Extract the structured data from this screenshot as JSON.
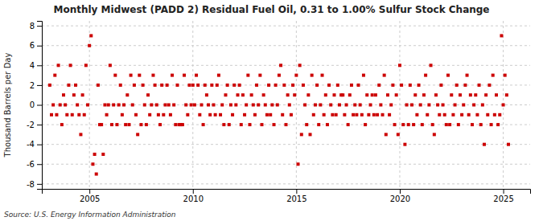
{
  "chart_data": {
    "type": "scatter",
    "title": "Monthly Midwest (PADD 2) Residual Fuel Oil, 0.31 to 1.00% Sulfur Stock Change",
    "ylabel": "Thousand Barrels per Day",
    "source": "Source: U.S. Energy Information Administration",
    "color": "#cc0000",
    "marker": "square",
    "grid": true,
    "xlim": [
      2002.7,
      2026.3
    ],
    "ylim": [
      -8.5,
      8.5
    ],
    "xticks": [
      2005,
      2010,
      2015,
      2020,
      2025
    ],
    "yticks": [
      -8,
      -6,
      -4,
      -2,
      0,
      2,
      4,
      6,
      8
    ],
    "x": [
      2003.083,
      2003.167,
      2003.25,
      2003.333,
      2003.417,
      2003.5,
      2003.583,
      2003.667,
      2003.75,
      2003.833,
      2003.917,
      2004.0,
      2004.083,
      2004.167,
      2004.25,
      2004.333,
      2004.417,
      2004.5,
      2004.583,
      2004.667,
      2004.75,
      2004.833,
      2004.917,
      2005.0,
      2005.083,
      2005.167,
      2005.25,
      2005.333,
      2005.417,
      2005.5,
      2005.583,
      2005.667,
      2005.75,
      2005.833,
      2005.917,
      2006.0,
      2006.083,
      2006.167,
      2006.25,
      2006.333,
      2006.417,
      2006.5,
      2006.583,
      2006.667,
      2006.75,
      2006.833,
      2006.917,
      2007.0,
      2007.083,
      2007.167,
      2007.25,
      2007.333,
      2007.417,
      2007.5,
      2007.583,
      2007.667,
      2007.75,
      2007.833,
      2007.917,
      2008.0,
      2008.083,
      2008.167,
      2008.25,
      2008.333,
      2008.417,
      2008.5,
      2008.583,
      2008.667,
      2008.75,
      2008.833,
      2008.917,
      2009.0,
      2009.083,
      2009.167,
      2009.25,
      2009.333,
      2009.417,
      2009.5,
      2009.583,
      2009.667,
      2009.75,
      2009.833,
      2009.917,
      2010.0,
      2010.083,
      2010.167,
      2010.25,
      2010.333,
      2010.417,
      2010.5,
      2010.583,
      2010.667,
      2010.75,
      2010.833,
      2010.917,
      2011.0,
      2011.083,
      2011.167,
      2011.25,
      2011.333,
      2011.417,
      2011.5,
      2011.583,
      2011.667,
      2011.75,
      2011.833,
      2011.917,
      2012.0,
      2012.083,
      2012.167,
      2012.25,
      2012.333,
      2012.417,
      2012.5,
      2012.583,
      2012.667,
      2012.75,
      2012.833,
      2012.917,
      2013.0,
      2013.083,
      2013.167,
      2013.25,
      2013.333,
      2013.417,
      2013.5,
      2013.583,
      2013.667,
      2013.75,
      2013.833,
      2013.917,
      2014.0,
      2014.083,
      2014.167,
      2014.25,
      2014.333,
      2014.417,
      2014.5,
      2014.583,
      2014.667,
      2014.75,
      2014.833,
      2014.917,
      2015.0,
      2015.083,
      2015.167,
      2015.25,
      2015.333,
      2015.417,
      2015.5,
      2015.583,
      2015.667,
      2015.75,
      2015.833,
      2015.917,
      2016.0,
      2016.083,
      2016.167,
      2016.25,
      2016.333,
      2016.417,
      2016.5,
      2016.583,
      2016.667,
      2016.75,
      2016.833,
      2016.917,
      2017.0,
      2017.083,
      2017.167,
      2017.25,
      2017.333,
      2017.417,
      2017.5,
      2017.583,
      2017.667,
      2017.75,
      2017.833,
      2017.917,
      2018.0,
      2018.083,
      2018.167,
      2018.25,
      2018.333,
      2018.417,
      2018.5,
      2018.583,
      2018.667,
      2018.75,
      2018.833,
      2018.917,
      2019.0,
      2019.083,
      2019.167,
      2019.25,
      2019.333,
      2019.417,
      2019.5,
      2019.583,
      2019.667,
      2019.75,
      2019.833,
      2019.917,
      2020.0,
      2020.083,
      2020.167,
      2020.25,
      2020.333,
      2020.417,
      2020.5,
      2020.583,
      2020.667,
      2020.75,
      2020.833,
      2020.917,
      2021.0,
      2021.083,
      2021.167,
      2021.25,
      2021.333,
      2021.417,
      2021.5,
      2021.583,
      2021.667,
      2021.75,
      2021.833,
      2021.917,
      2022.0,
      2022.083,
      2022.167,
      2022.25,
      2022.333,
      2022.417,
      2022.5,
      2022.583,
      2022.667,
      2022.75,
      2022.833,
      2022.917,
      2023.0,
      2023.083,
      2023.167,
      2023.25,
      2023.333,
      2023.417,
      2023.5,
      2023.583,
      2023.667,
      2023.75,
      2023.833,
      2023.917,
      2024.0,
      2024.083,
      2024.167,
      2024.25,
      2024.333,
      2024.417,
      2024.5,
      2024.583,
      2024.667,
      2024.75,
      2024.833,
      2024.917,
      2025.0,
      2025.083,
      2025.167,
      2025.25
    ],
    "values": [
      2.0,
      -1.0,
      0.0,
      3.0,
      -1.0,
      4.0,
      0.0,
      -2.0,
      1.0,
      0.0,
      -1.0,
      2.0,
      4.0,
      -1.0,
      1.0,
      2.0,
      0.0,
      -1.0,
      -3.0,
      1.0,
      -1.0,
      4.0,
      0.0,
      6.0,
      7.0,
      -6.0,
      -5.0,
      -7.0,
      2.0,
      -2.0,
      -2.0,
      -5.0,
      0.0,
      -1.0,
      0.0,
      4.0,
      -2.0,
      0.0,
      3.0,
      -2.0,
      0.0,
      2.0,
      -1.0,
      0.0,
      -2.0,
      1.0,
      -2.0,
      3.0,
      0.0,
      2.0,
      -1.0,
      -3.0,
      3.0,
      -2.0,
      2.0,
      0.0,
      -2.0,
      1.0,
      -1.0,
      0.0,
      3.0,
      2.0,
      0.0,
      -1.0,
      -2.0,
      2.0,
      -1.0,
      0.0,
      2.0,
      0.0,
      -1.0,
      3.0,
      0.0,
      -2.0,
      2.0,
      -2.0,
      -2.0,
      -2.0,
      3.0,
      0.0,
      -1.0,
      2.0,
      0.0,
      2.0,
      0.0,
      3.0,
      2.0,
      -1.0,
      0.0,
      -2.0,
      2.0,
      1.0,
      0.0,
      -1.0,
      2.0,
      0.0,
      -1.0,
      2.0,
      3.0,
      -1.0,
      0.0,
      -2.0,
      1.0,
      2.0,
      -2.0,
      0.0,
      -1.0,
      2.0,
      0.0,
      1.0,
      2.0,
      -2.0,
      1.0,
      -1.0,
      0.0,
      3.0,
      -2.0,
      1.0,
      0.0,
      -1.0,
      2.0,
      0.0,
      3.0,
      -2.0,
      1.0,
      0.0,
      -1.0,
      2.0,
      -1.0,
      0.0,
      -2.0,
      2.0,
      0.0,
      3.0,
      4.0,
      -1.0,
      2.0,
      -2.0,
      1.0,
      0.0,
      -1.0,
      2.0,
      1.0,
      3.0,
      -6.0,
      4.0,
      -3.0,
      2.0,
      0.0,
      -2.0,
      1.0,
      -3.0,
      3.0,
      -1.0,
      0.0,
      2.0,
      -2.0,
      0.0,
      3.0,
      -1.0,
      1.0,
      -2.0,
      2.0,
      0.0,
      -1.0,
      1.0,
      -1.0,
      2.0,
      0.0,
      1.0,
      1.0,
      -1.0,
      0.0,
      -2.0,
      1.0,
      2.0,
      -1.0,
      0.0,
      -1.0,
      2.0,
      0.0,
      -1.0,
      3.0,
      -2.0,
      1.0,
      -1.0,
      0.0,
      1.0,
      -1.0,
      1.0,
      -1.0,
      2.0,
      0.0,
      -1.0,
      3.0,
      -3.0,
      1.0,
      -1.0,
      0.0,
      2.0,
      -2.0,
      1.0,
      -3.0,
      4.0,
      2.0,
      -2.0,
      -4.0,
      0.0,
      -2.0,
      2.0,
      0.0,
      -2.0,
      1.0,
      -1.0,
      2.0,
      0.0,
      -2.0,
      1.0,
      3.0,
      -1.0,
      0.0,
      4.0,
      -2.0,
      -3.0,
      1.0,
      0.0,
      -1.0,
      2.0,
      0.0,
      -1.0,
      -2.0,
      3.0,
      -2.0,
      1.0,
      -1.0,
      0.0,
      2.0,
      -2.0,
      1.0,
      -1.0,
      0.0,
      2.0,
      3.0,
      -1.0,
      1.0,
      -2.0,
      0.0,
      1.0,
      -1.0,
      2.0,
      -2.0,
      0.0,
      -4.0,
      1.0,
      -1.0,
      2.0,
      -2.0,
      3.0,
      -1.0,
      1.0,
      -2.0,
      -1.0,
      7.0,
      0.0,
      3.0,
      1.0,
      -4.0
    ]
  }
}
